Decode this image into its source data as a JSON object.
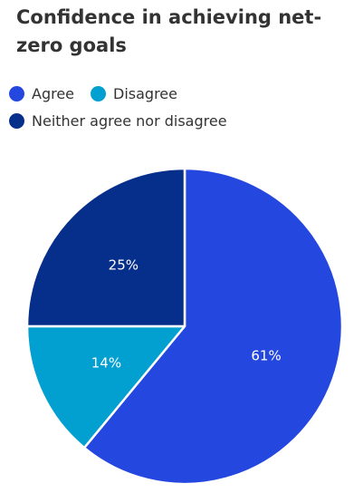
{
  "chart_data": {
    "type": "pie",
    "title": "Confidence in achieving net-zero goals",
    "legend_position": "top-left",
    "slices": [
      {
        "name": "Agree",
        "value": 61,
        "label": "61%",
        "color": "#2447e0"
      },
      {
        "name": "Disagree",
        "value": 14,
        "label": "14%",
        "color": "#029fd1"
      },
      {
        "name": "Neither agree nor disagree",
        "value": 25,
        "label": "25%",
        "color": "#062f8c"
      }
    ]
  }
}
